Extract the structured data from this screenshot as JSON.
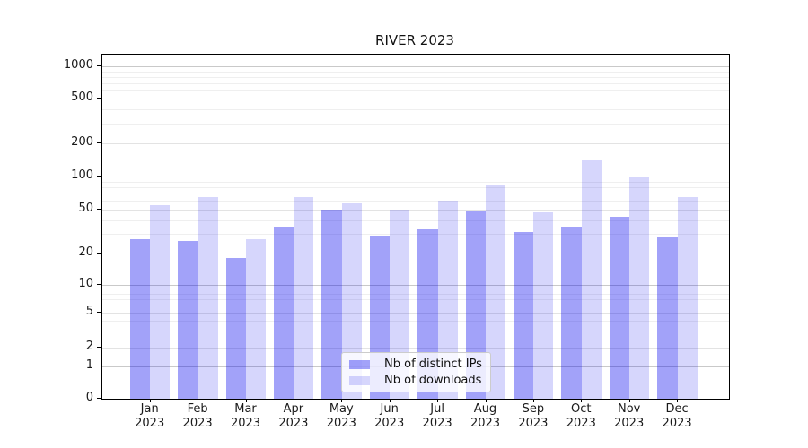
{
  "title": "RIVER 2023",
  "chart_data": {
    "type": "bar",
    "title": "RIVER 2023",
    "categories": [
      "Jan 2023",
      "Feb 2023",
      "Mar 2023",
      "Apr 2023",
      "May 2023",
      "Jun 2023",
      "Jul 2023",
      "Aug 2023",
      "Sep 2023",
      "Oct 2023",
      "Nov 2023",
      "Dec 2023"
    ],
    "series": [
      {
        "name": "Nb of distinct IPs",
        "color": "#0000ee",
        "opacity": 0.365,
        "values": [
          27,
          26,
          18,
          35,
          50,
          29,
          33,
          48,
          31,
          35,
          43,
          28
        ]
      },
      {
        "name": "Nb of downloads",
        "color": "#0000ee",
        "opacity": 0.16,
        "values": [
          55,
          65,
          27,
          65,
          57,
          50,
          60,
          85,
          47,
          140,
          100,
          65
        ]
      }
    ],
    "y_ticks": [
      0,
      1,
      2,
      5,
      10,
      20,
      50,
      100,
      200,
      500,
      1000
    ],
    "ylim": [
      0,
      1300
    ],
    "yscale": "log-like with 0 baseline",
    "grid": {
      "horizontal": true,
      "vertical": false,
      "minor": true
    },
    "legend_position": "lower center",
    "colors": {
      "major_grid": "#c9c9c9",
      "labeled_grid": "#e3e3e3",
      "minor_grid": "#efefef",
      "spine": "#000000",
      "text": "#1a1a1a"
    }
  }
}
